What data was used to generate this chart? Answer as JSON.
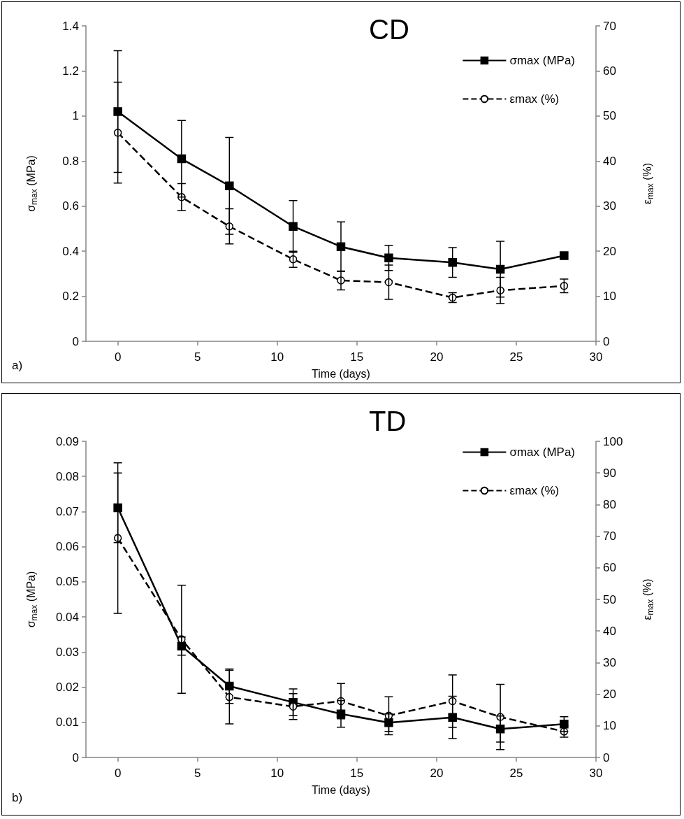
{
  "chart_data": [
    {
      "type": "line",
      "title": "CD",
      "xlabel": "Time (days)",
      "ylabel": "σ$_{max}$ (MPa)",
      "y2label": "ε$_{max}$ (%)",
      "annotations": [
        "a)"
      ],
      "x": [
        0,
        4,
        7,
        11,
        14,
        17,
        21,
        24,
        28
      ],
      "xlim": [
        -2,
        30
      ],
      "xticks": [
        0,
        5,
        10,
        15,
        20,
        25,
        30
      ],
      "ylim": [
        0,
        1.4
      ],
      "yticks": [
        0,
        0.2,
        0.4,
        0.6,
        0.8,
        1,
        1.2,
        1.4
      ],
      "y2lim": [
        0,
        70
      ],
      "y2ticks": [
        0,
        10,
        20,
        30,
        40,
        50,
        60,
        70
      ],
      "grid": false,
      "legend": "top right",
      "series": [
        {
          "name": "σmax (MPa)",
          "color": "#000000",
          "marker": "square",
          "line_style": "solid",
          "values": [
            1.02,
            0.81,
            0.69,
            0.51,
            0.42,
            0.37,
            0.35,
            0.32,
            0.38
          ],
          "errors": [
            0.27,
            0.17,
            0.215,
            0.115,
            0.11,
            0.056,
            0.066,
            0.124,
            null
          ]
        },
        {
          "name": "εmax (%)",
          "color": "#000000",
          "marker": "circle",
          "line_style": "dashed",
          "axis": "y2",
          "values": [
            46.3,
            32,
            25.5,
            18.2,
            13.5,
            13.1,
            9.7,
            11.3,
            12.3
          ],
          "errors": [
            11.2,
            3,
            3.9,
            1.8,
            2.1,
            3.8,
            1.1,
            2.9,
            1.5
          ]
        }
      ]
    },
    {
      "type": "line",
      "title": "TD",
      "xlabel": "Time (days)",
      "ylabel": "σ$_{max}$ (MPa)",
      "y2label": "ε$_{max}$ (%)",
      "annotations": [
        "b)"
      ],
      "x": [
        0,
        4,
        7,
        11,
        14,
        17,
        21,
        24,
        28
      ],
      "xlim": [
        -2,
        30
      ],
      "xticks": [
        0,
        5,
        10,
        15,
        20,
        25,
        30
      ],
      "ylim": [
        0,
        0.09
      ],
      "yticks": [
        0,
        0.01,
        0.02,
        0.03,
        0.04,
        0.05,
        0.06,
        0.07,
        0.08,
        0.09
      ],
      "y2lim": [
        0,
        100
      ],
      "y2ticks": [
        0,
        10,
        20,
        30,
        40,
        50,
        60,
        70,
        80,
        90,
        100
      ],
      "grid": false,
      "legend": "top right",
      "series": [
        {
          "name": "σmax (MPa)",
          "color": "#000000",
          "marker": "square",
          "line_style": "solid",
          "values": [
            0.0711,
            0.0317,
            0.0203,
            0.0157,
            0.0124,
            0.0099,
            0.0114,
            0.0081,
            0.0095
          ],
          "errors": [
            0.0099,
            0.0026,
            0.0049,
            0.0038,
            0.0038,
            0.0025,
            0.006,
            0.0037,
            0.0021
          ]
        },
        {
          "name": "εmax (%)",
          "color": "#000000",
          "marker": "circle",
          "line_style": "dashed",
          "axis": "y2",
          "values": [
            69.4,
            37.4,
            19.1,
            16.1,
            17.8,
            13.2,
            17.8,
            12.8,
            8.2
          ],
          "errors": [
            23.8,
            17.1,
            8.5,
            4.1,
            5.6,
            6,
            8.3,
            10.3,
            1.8
          ]
        }
      ]
    }
  ]
}
